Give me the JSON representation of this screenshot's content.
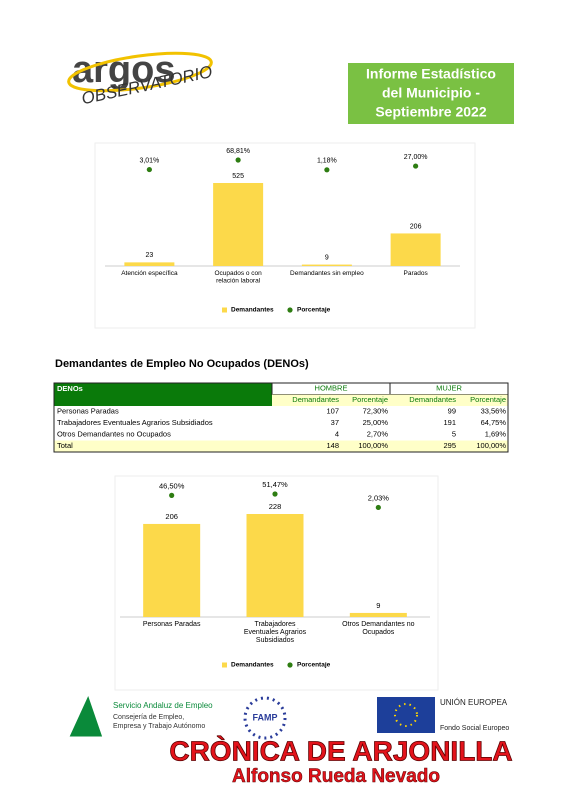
{
  "header": {
    "logo": "argos",
    "logo_sub": "OBSERVATORIO",
    "title_lines": [
      "Informe Estadístico",
      "del Municipio -",
      "Septiembre 2022"
    ]
  },
  "chart_data": [
    {
      "type": "bar",
      "categories": [
        "Atención específica",
        "Ocupados o con relación laboral",
        "Demandantes sin empleo",
        "Parados"
      ],
      "series": [
        {
          "name": "Demandantes",
          "color": "#fcd94a",
          "values": [
            23,
            525,
            9,
            206
          ]
        },
        {
          "name": "Porcentaje",
          "color": "#2e7d12",
          "values": [
            3.01,
            68.81,
            1.18,
            27.0
          ],
          "value_labels": [
            "3,01%",
            "68,81%",
            "1,18%",
            "27,00%"
          ]
        }
      ]
    },
    {
      "type": "bar",
      "categories": [
        "Personas Paradas",
        "Trabajadores Eventuales Agrarios Subsidiados",
        "Otros Demandantes no Ocupados"
      ],
      "series": [
        {
          "name": "Demandantes",
          "color": "#fcd94a",
          "values": [
            206,
            228,
            9
          ]
        },
        {
          "name": "Porcentaje",
          "color": "#2e7d12",
          "values": [
            46.5,
            51.47,
            2.03
          ],
          "value_labels": [
            "46,50%",
            "51,47%",
            "2,03%"
          ]
        }
      ]
    }
  ],
  "table": {
    "title": "Demandantes de Empleo No Ocupados (DENOs)",
    "corner": "DENOs",
    "groups": [
      "HOMBRE",
      "MUJER"
    ],
    "subheaders": [
      "Demandantes",
      "Porcentaje",
      "Demandantes",
      "Porcentaje"
    ],
    "rows": [
      [
        "Personas Paradas",
        107,
        "72,30%",
        99,
        "33,56%"
      ],
      [
        "Trabajadores Eventuales Agrarios Subsidiados",
        37,
        "25,00%",
        191,
        "64,75%"
      ],
      [
        "Otros Demandantes no Ocupados",
        4,
        "2,70%",
        5,
        "1,69%"
      ],
      [
        "Total",
        148,
        "100,00%",
        295,
        "100,00%"
      ]
    ]
  },
  "footer": {
    "sae": [
      "Servicio Andaluz de Empleo",
      "Consejería de Empleo,",
      "Empresa y Trabajo Autónomo"
    ],
    "famp": "FAMP",
    "eu": [
      "UNIÓN EUROPEA",
      "Fondo Social Europeo"
    ],
    "brand": "CRÒNICA DE ARJONILLA",
    "author": "Alfonso Rueda Nevado"
  }
}
